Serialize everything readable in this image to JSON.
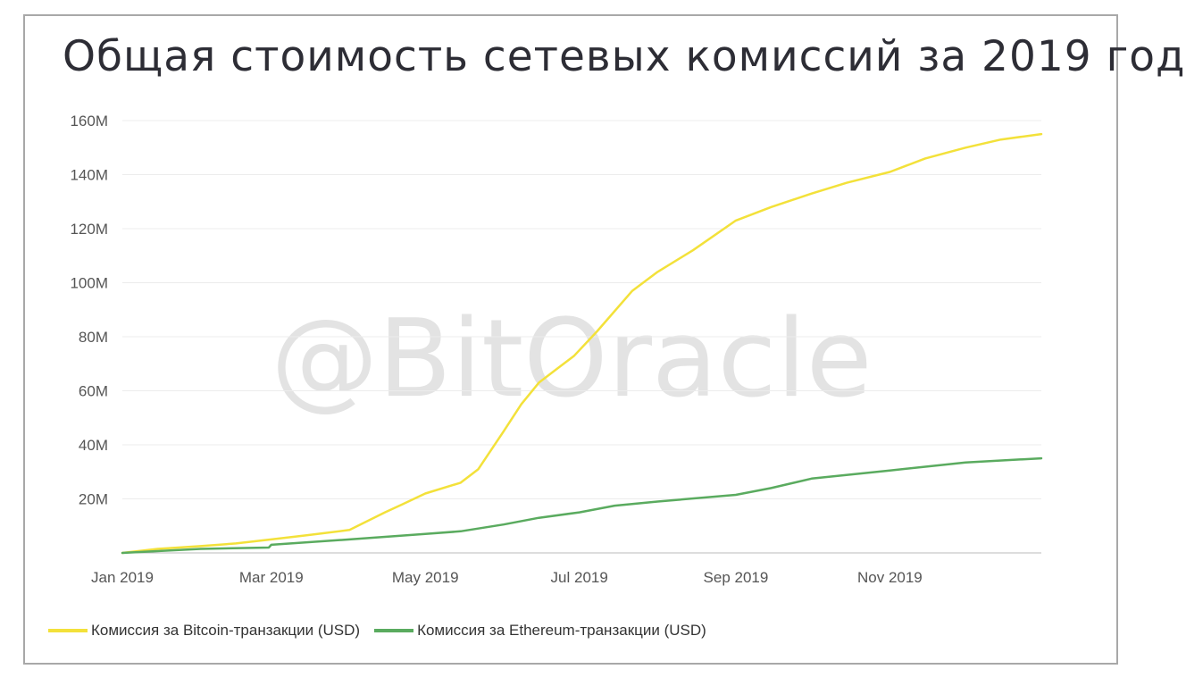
{
  "title": "Общая стоимость сетевых комиссий за 2019 год",
  "watermark": "@BitOracle",
  "colors": {
    "bitcoin": "#f3e13a",
    "ethereum": "#5aab5f",
    "grid": "#ececec",
    "axis": "#bbbbbb"
  },
  "chart_data": {
    "type": "line",
    "title": "Общая стоимость сетевых комиссий за 2019 год",
    "xlabel": "",
    "ylabel": "",
    "xlim": [
      "2019-01-01",
      "2019-12-31"
    ],
    "ylim": [
      0,
      160
    ],
    "y_ticks": [
      20,
      40,
      60,
      80,
      100,
      120,
      140,
      160
    ],
    "y_tick_labels": [
      "20M",
      "40M",
      "60M",
      "80M",
      "100M",
      "120M",
      "140M",
      "160M"
    ],
    "x_ticks": [
      "2019-01-01",
      "2019-03-01",
      "2019-05-01",
      "2019-07-01",
      "2019-09-01",
      "2019-11-01"
    ],
    "x_tick_labels": [
      "Jan 2019",
      "Mar 2019",
      "May 2019",
      "Jul 2019",
      "Sep 2019",
      "Nov 2019"
    ],
    "grid": true,
    "legend_position": "bottom-left",
    "series": [
      {
        "name": "Комиссия за Bitcoin-транзакции (USD)",
        "x": [
          "2019-01-01",
          "2019-01-15",
          "2019-02-01",
          "2019-02-15",
          "2019-03-01",
          "2019-03-15",
          "2019-04-01",
          "2019-04-15",
          "2019-04-22",
          "2019-05-01",
          "2019-05-15",
          "2019-05-22",
          "2019-06-01",
          "2019-06-08",
          "2019-06-15",
          "2019-06-22",
          "2019-06-29",
          "2019-07-08",
          "2019-07-22",
          "2019-08-01",
          "2019-08-15",
          "2019-09-01",
          "2019-09-15",
          "2019-10-01",
          "2019-10-15",
          "2019-11-01",
          "2019-11-15",
          "2019-12-01",
          "2019-12-15",
          "2019-12-31"
        ],
        "y": [
          0,
          1.5,
          2.5,
          3.5,
          5,
          6.5,
          8.5,
          15,
          18,
          22,
          26,
          31,
          45,
          55,
          63,
          68,
          73,
          82,
          97,
          104,
          112,
          123,
          128,
          133,
          137,
          141,
          146,
          150,
          153,
          155
        ]
      },
      {
        "name": "Комиссия за Ethereum-транзакции (USD)",
        "x": [
          "2019-01-01",
          "2019-02-01",
          "2019-02-28",
          "2019-03-01",
          "2019-04-01",
          "2019-05-01",
          "2019-05-15",
          "2019-06-01",
          "2019-06-15",
          "2019-07-01",
          "2019-07-15",
          "2019-08-01",
          "2019-09-01",
          "2019-09-15",
          "2019-10-01",
          "2019-11-01",
          "2019-12-01",
          "2019-12-31"
        ],
        "y": [
          0,
          1.5,
          2,
          3,
          5,
          7,
          8,
          10.5,
          13,
          15,
          17.5,
          19,
          21.5,
          24,
          27.5,
          30.5,
          33.5,
          35
        ]
      }
    ]
  }
}
